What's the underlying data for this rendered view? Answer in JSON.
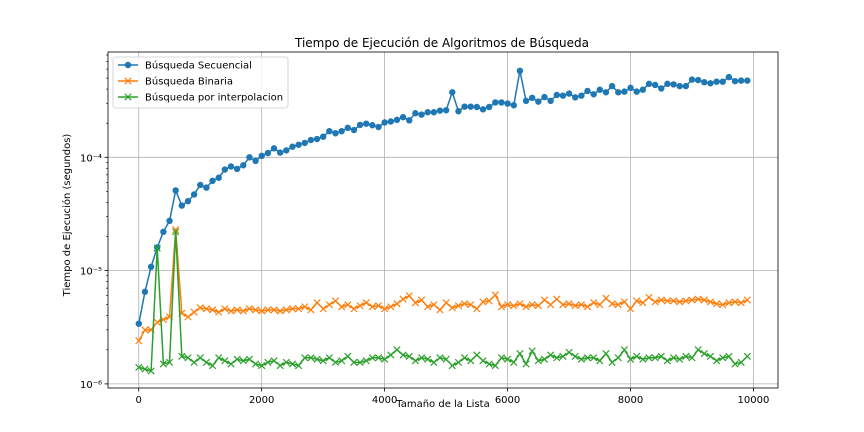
{
  "chart_data": {
    "type": "line",
    "title": "Tiempo de Ejecución de Algoritmos de Búsqueda",
    "xlabel": "Tamaño de la Lista",
    "ylabel": "Tiempo de Ejecución (segundos)",
    "yscale": "log",
    "xlim": [
      -500,
      10400
    ],
    "ylim": [
      9.2e-07,
      0.00085
    ],
    "xticks": [
      0,
      2000,
      4000,
      6000,
      8000,
      10000
    ],
    "xtick_labels": [
      "0",
      "2000",
      "4000",
      "6000",
      "8000",
      "10000"
    ],
    "yticks": [
      1e-06,
      1e-05,
      0.0001
    ],
    "ytick_labels": [
      "10⁻⁶",
      "10⁻⁵",
      "10⁻⁴"
    ],
    "grid": true,
    "legend_position": "top-left",
    "x": [
      1,
      101,
      201,
      301,
      401,
      501,
      601,
      701,
      801,
      901,
      1001,
      1101,
      1201,
      1301,
      1401,
      1501,
      1601,
      1701,
      1801,
      1901,
      2001,
      2101,
      2201,
      2301,
      2401,
      2501,
      2601,
      2701,
      2801,
      2901,
      3001,
      3101,
      3201,
      3301,
      3401,
      3501,
      3601,
      3701,
      3801,
      3901,
      4001,
      4101,
      4201,
      4301,
      4401,
      4501,
      4601,
      4701,
      4801,
      4901,
      5001,
      5101,
      5201,
      5301,
      5401,
      5501,
      5601,
      5701,
      5801,
      5901,
      6001,
      6101,
      6201,
      6301,
      6401,
      6501,
      6601,
      6701,
      6801,
      6901,
      7001,
      7101,
      7201,
      7301,
      7401,
      7501,
      7601,
      7701,
      7801,
      7901,
      8001,
      8101,
      8201,
      8301,
      8401,
      8501,
      8601,
      8701,
      8801,
      8901,
      9001,
      9101,
      9201,
      9301,
      9401,
      9501,
      9601,
      9701,
      9801,
      9901
    ],
    "series": [
      {
        "name": "Búsqueda Secuencial",
        "color": "#1f77b4",
        "marker": "circle",
        "values": [
          3.4e-06,
          6.5e-06,
          1.08e-05,
          1.6e-05,
          2.2e-05,
          2.75e-05,
          5.1e-05,
          3.75e-05,
          4.1e-05,
          4.7e-05,
          5.7e-05,
          5.4e-05,
          6.2e-05,
          6.6e-05,
          7.8e-05,
          8.3e-05,
          7.9e-05,
          8.5e-05,
          0.0001,
          9.3e-05,
          0.000103,
          0.000109,
          0.00012,
          0.00011,
          0.000115,
          0.000124,
          0.000129,
          0.000134,
          0.000142,
          0.000145,
          0.000152,
          0.00017,
          0.000163,
          0.00017,
          0.000182,
          0.000174,
          0.000193,
          0.000198,
          0.000192,
          0.000185,
          0.000203,
          0.000207,
          0.000214,
          0.000226,
          0.000212,
          0.000245,
          0.000238,
          0.00025,
          0.00025,
          0.000258,
          0.00026,
          0.000375,
          0.000255,
          0.00028,
          0.00028,
          0.000278,
          0.000265,
          0.000278,
          0.000305,
          0.000305,
          0.000298,
          0.000288,
          0.00058,
          0.000315,
          0.000335,
          0.00031,
          0.00034,
          0.000315,
          0.000355,
          0.00035,
          0.000365,
          0.000338,
          0.00035,
          0.000385,
          0.00036,
          0.000395,
          0.000375,
          0.000425,
          0.000375,
          0.00038,
          0.00041,
          0.00038,
          0.000395,
          0.000445,
          0.000435,
          0.000405,
          0.000445,
          0.00044,
          0.000425,
          0.000425,
          0.000485,
          0.00048,
          0.00046,
          0.00045,
          0.000465,
          0.000465,
          0.00051,
          0.00047,
          0.000475,
          0.000475
        ]
      },
      {
        "name": "Búsqueda Binaria",
        "color": "#ff7f0e",
        "marker": "x",
        "values": [
          2.4e-06,
          3e-06,
          3e-06,
          3.5e-06,
          3.7e-06,
          3.9e-06,
          2.3e-05,
          4.2e-06,
          3.9e-06,
          4.3e-06,
          4.7e-06,
          4.6e-06,
          4.5e-06,
          4.3e-06,
          4.6e-06,
          4.4e-06,
          4.5e-06,
          4.4e-06,
          4.6e-06,
          4.5e-06,
          4.4e-06,
          4.5e-06,
          4.5e-06,
          4.4e-06,
          4.5e-06,
          4.6e-06,
          4.6e-06,
          4.8e-06,
          4.5e-06,
          5.2e-06,
          4.6e-06,
          5e-06,
          5.4e-06,
          4.8e-06,
          5e-06,
          4.6e-06,
          4.9e-06,
          5.2e-06,
          4.8e-06,
          4.9e-06,
          4.6e-06,
          4.8e-06,
          5.1e-06,
          5.6e-06,
          6e-06,
          5.2e-06,
          5.5e-06,
          4.8e-06,
          5e-06,
          4.5e-06,
          5.2e-06,
          4.7e-06,
          4.9e-06,
          5.1e-06,
          5e-06,
          4.6e-06,
          5.3e-06,
          5.4e-06,
          6.1e-06,
          4.8e-06,
          5e-06,
          4.9e-06,
          5.1e-06,
          4.8e-06,
          5e-06,
          4.9e-06,
          5.5e-06,
          5e-06,
          5.6e-06,
          5e-06,
          5.1e-06,
          4.9e-06,
          5e-06,
          4.8e-06,
          5.2e-06,
          5e-06,
          5.7e-06,
          5.1e-06,
          5e-06,
          5.3e-06,
          4.6e-06,
          5.4e-06,
          5.2e-06,
          5.8e-06,
          5.3e-06,
          5.5e-06,
          5.4e-06,
          5.4e-06,
          5.3e-06,
          5.4e-06,
          5.5e-06,
          5.6e-06,
          5.5e-06,
          5.3e-06,
          5.1e-06,
          5e-06,
          5.2e-06,
          5.3e-06,
          5.2e-06,
          5.5e-06
        ]
      },
      {
        "name": "Búsqueda por interpolacion",
        "color": "#2ca02c",
        "marker": "x",
        "values": [
          1.4e-06,
          1.35e-06,
          1.3e-06,
          1.58e-05,
          1.5e-06,
          1.55e-06,
          2.2e-05,
          1.75e-06,
          1.7e-06,
          1.55e-06,
          1.7e-06,
          1.55e-06,
          1.45e-06,
          1.7e-06,
          1.6e-06,
          1.5e-06,
          1.65e-06,
          1.6e-06,
          1.65e-06,
          1.5e-06,
          1.45e-06,
          1.55e-06,
          1.6e-06,
          1.45e-06,
          1.55e-06,
          1.5e-06,
          1.45e-06,
          1.7e-06,
          1.7e-06,
          1.65e-06,
          1.6e-06,
          1.7e-06,
          1.55e-06,
          1.6e-06,
          1.75e-06,
          1.55e-06,
          1.55e-06,
          1.6e-06,
          1.7e-06,
          1.7e-06,
          1.65e-06,
          1.8e-06,
          2e-06,
          1.8e-06,
          1.75e-06,
          1.6e-06,
          1.7e-06,
          1.65e-06,
          1.55e-06,
          1.7e-06,
          1.65e-06,
          1.45e-06,
          1.55e-06,
          1.7e-06,
          1.6e-06,
          1.8e-06,
          1.6e-06,
          1.5e-06,
          1.45e-06,
          1.7e-06,
          1.65e-06,
          1.55e-06,
          1.85e-06,
          1.5e-06,
          1.95e-06,
          1.6e-06,
          1.65e-06,
          1.8e-06,
          1.7e-06,
          1.75e-06,
          1.9e-06,
          1.75e-06,
          1.65e-06,
          1.7e-06,
          1.7e-06,
          1.6e-06,
          1.85e-06,
          1.55e-06,
          1.7e-06,
          2e-06,
          1.65e-06,
          1.75e-06,
          1.65e-06,
          1.7e-06,
          1.7e-06,
          1.75e-06,
          1.6e-06,
          1.7e-06,
          1.65e-06,
          1.75e-06,
          1.7e-06,
          2e-06,
          1.85e-06,
          1.75e-06,
          1.6e-06,
          1.7e-06,
          1.75e-06,
          1.5e-06,
          1.55e-06,
          1.75e-06
        ]
      }
    ]
  }
}
